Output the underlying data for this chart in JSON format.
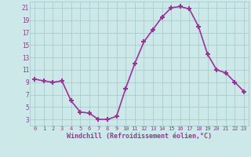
{
  "x": [
    0,
    1,
    2,
    3,
    4,
    5,
    6,
    7,
    8,
    9,
    10,
    11,
    12,
    13,
    14,
    15,
    16,
    17,
    18,
    19,
    20,
    21,
    22,
    23
  ],
  "y": [
    9.5,
    9.2,
    9.0,
    9.2,
    6.0,
    4.2,
    4.0,
    3.0,
    3.0,
    3.5,
    8.0,
    12.0,
    15.5,
    17.5,
    19.5,
    21.0,
    21.2,
    20.8,
    18.0,
    13.5,
    11.0,
    10.5,
    9.0,
    7.5
  ],
  "line_color": "#993399",
  "bg_color": "#cce8e8",
  "grid_color": "#aacccc",
  "xlabel": "Windchill (Refroidissement éolien,°C)",
  "ylim": [
    2,
    22
  ],
  "xlim": [
    -0.5,
    23.5
  ],
  "yticks": [
    3,
    5,
    7,
    9,
    11,
    13,
    15,
    17,
    19,
    21
  ],
  "xticks": [
    0,
    1,
    2,
    3,
    4,
    5,
    6,
    7,
    8,
    9,
    10,
    11,
    12,
    13,
    14,
    15,
    16,
    17,
    18,
    19,
    20,
    21,
    22,
    23
  ],
  "font_color": "#993399",
  "marker": "+",
  "markersize": 5,
  "linewidth": 1.2
}
